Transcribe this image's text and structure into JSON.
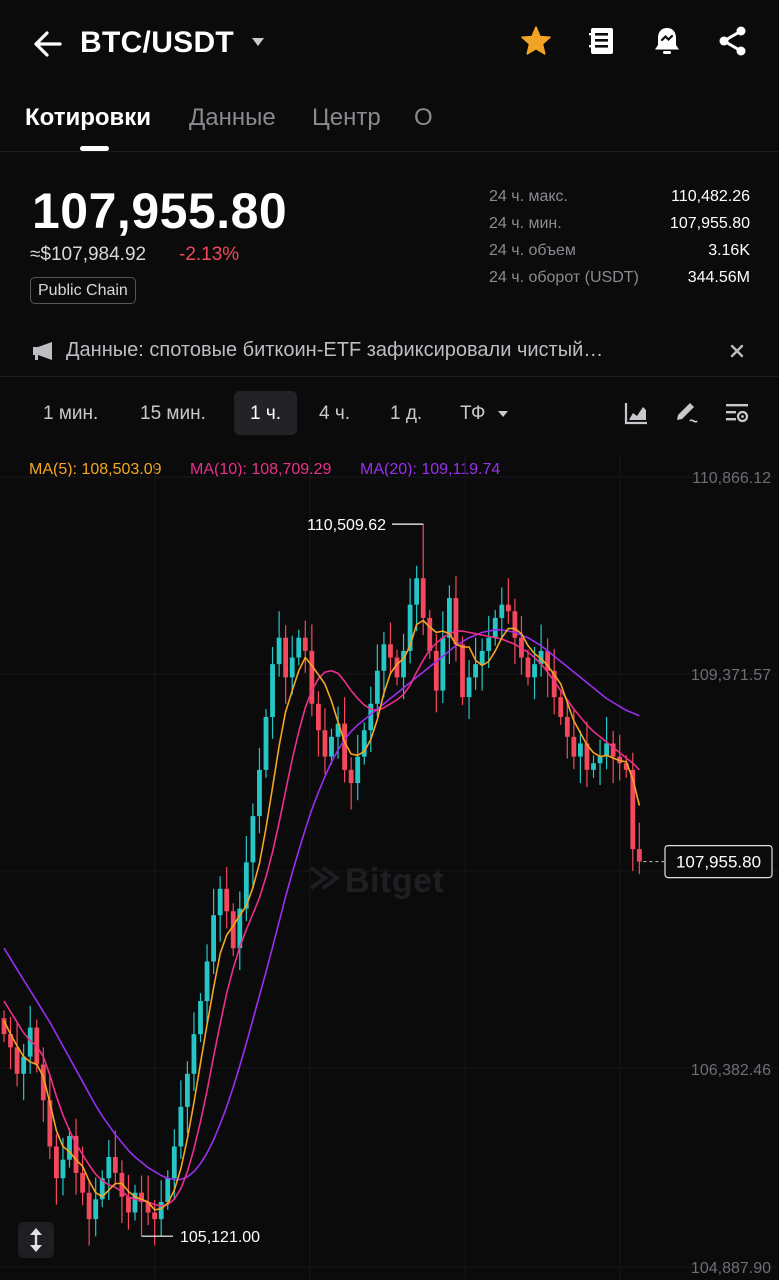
{
  "header": {
    "pair": "BTC/USDT",
    "icons": [
      "back-arrow-icon",
      "chevron-down-icon",
      "star-icon",
      "book-icon",
      "alert-bell-icon",
      "share-icon"
    ],
    "colors": {
      "star": "#f0a326",
      "text": "#ffffff"
    }
  },
  "tabs": [
    {
      "label": "Котировки",
      "active": true
    },
    {
      "label": "Данные",
      "active": false
    },
    {
      "label": "Центр",
      "active": false
    },
    {
      "label": "О",
      "active": false
    }
  ],
  "ticker": {
    "price": "107,955.80",
    "usd_equiv": "≈$107,984.92",
    "change": "-2.13%",
    "tag": "Public Chain",
    "colors": {
      "down": "#f4485d",
      "up": "#26c6c6"
    }
  },
  "stats": [
    {
      "label": "24 ч. макс.",
      "value": "110,482.26"
    },
    {
      "label": "24 ч. мин.",
      "value": "107,955.80"
    },
    {
      "label": "24 ч. объем",
      "value": "3.16K"
    },
    {
      "label": "24 ч. оборот (USDT)",
      "value": "344.56M"
    }
  ],
  "news": {
    "text": "Данные: спотовые биткоин-ETF зафиксировали чистый…",
    "icons": [
      "megaphone-icon",
      "close-icon"
    ]
  },
  "timeframes": {
    "items": [
      "1 мин.",
      "15 мин.",
      "1 ч.",
      "4 ч.",
      "1 д.",
      "ТФ"
    ],
    "selected": "1 ч.",
    "tools": [
      "chart-type-icon",
      "draw-tool-icon",
      "indicator-settings-icon"
    ]
  },
  "indicators": {
    "ma5": "MA(5): 108,503.09",
    "ma10": "MA(10): 108,709.29",
    "ma20": "MA(20): 109,119.74",
    "colors": {
      "ma5": "#f5a623",
      "ma10": "#ec2f8b",
      "ma20": "#9b2ff0"
    }
  },
  "watermark": "Bitget",
  "chart_data": {
    "type": "candlestick",
    "symbol": "BTC/USDT",
    "interval": "1 ч.",
    "y_axis_labels": [
      "110,866.12",
      "109,371.57",
      "106,382.46",
      "104,887.90"
    ],
    "ylim": [
      104887.9,
      110866.12
    ],
    "high_marker": "110,509.62",
    "low_marker": "105,121.00",
    "last_price_label": "107,955.80",
    "high_value": 110509.62,
    "low_value": 105121.0,
    "last_value": 107955.8,
    "colors": {
      "up": "#26c6c6",
      "down": "#f4485d",
      "ma5": "#f5a623",
      "ma10": "#ec2f8b",
      "ma20": "#9b2ff0"
    },
    "close": [
      106650,
      106550,
      106350,
      106480,
      106700,
      106420,
      106150,
      105800,
      105560,
      105700,
      105880,
      105600,
      105450,
      105250,
      105400,
      105560,
      105720,
      105600,
      105420,
      105300,
      105450,
      105380,
      105300,
      105250,
      105380,
      105560,
      105800,
      106100,
      106350,
      106650,
      106900,
      107200,
      107550,
      107750,
      107580,
      107300,
      107600,
      107950,
      108300,
      108650,
      109050,
      109450,
      109650,
      109350,
      109500,
      109650,
      109550,
      109150,
      108950,
      108750,
      108900,
      109000,
      108650,
      108550,
      108750,
      108950,
      109150,
      109400,
      109600,
      109500,
      109350,
      109550,
      109900,
      110100,
      109800,
      109550,
      109250,
      109650,
      109950,
      109600,
      109200,
      109350,
      109450,
      109550,
      109650,
      109800,
      109900,
      109850,
      109650,
      109500,
      109350,
      109450,
      109550,
      109400,
      109200,
      109050,
      108900,
      108750,
      108850,
      108650,
      108700,
      108750,
      108850,
      108750,
      108700,
      108650,
      108050,
      107955.8
    ],
    "ma5": [
      106750,
      106650,
      106560,
      106480,
      106440,
      106420,
      106330,
      106130,
      105920,
      105800,
      105760,
      105700,
      105650,
      105540,
      105450,
      105420,
      105470,
      105520,
      105520,
      105460,
      105420,
      105400,
      105380,
      105320,
      105330,
      105370,
      105470,
      105630,
      105860,
      106130,
      106430,
      106720,
      107000,
      107260,
      107400,
      107470,
      107550,
      107620,
      107760,
      107940,
      108210,
      108520,
      108830,
      109090,
      109250,
      109400,
      109500,
      109440,
      109370,
      109300,
      109170,
      109010,
      108860,
      108770,
      108760,
      108790,
      108880,
      109030,
      109230,
      109380,
      109450,
      109490,
      109590,
      109750,
      109780,
      109730,
      109690,
      109700,
      109680,
      109600,
      109580,
      109580,
      109480,
      109440,
      109470,
      109550,
      109650,
      109720,
      109720,
      109680,
      109590,
      109530,
      109490,
      109440,
      109370,
      109300,
      109160,
      109020,
      108930,
      108840,
      108780,
      108750,
      108760,
      108740,
      108720,
      108710,
      108580,
      108380
    ],
    "ma10": [
      106900,
      106820,
      106740,
      106660,
      106600,
      106560,
      106480,
      106340,
      106180,
      106040,
      105920,
      105820,
      105740,
      105660,
      105590,
      105540,
      105510,
      105490,
      105460,
      105420,
      105400,
      105390,
      105380,
      105360,
      105350,
      105360,
      105400,
      105480,
      105610,
      105780,
      105990,
      106220,
      106480,
      106730,
      106960,
      107150,
      107310,
      107440,
      107560,
      107680,
      107840,
      108030,
      108250,
      108490,
      108730,
      108940,
      109120,
      109250,
      109340,
      109390,
      109400,
      109380,
      109320,
      109250,
      109190,
      109140,
      109110,
      109100,
      109120,
      109150,
      109180,
      109220,
      109290,
      109390,
      109480,
      109560,
      109610,
      109650,
      109680,
      109700,
      109700,
      109690,
      109680,
      109670,
      109660,
      109650,
      109640,
      109620,
      109600,
      109570,
      109540,
      109500,
      109450,
      109390,
      109320,
      109250,
      109180,
      109110,
      109050,
      108990,
      108940,
      108900,
      108860,
      108820,
      108780,
      108740,
      108700,
      108650
    ],
    "ma20": [
      107300,
      107220,
      107140,
      107060,
      106980,
      106900,
      106820,
      106740,
      106650,
      106560,
      106470,
      106380,
      106290,
      106200,
      106110,
      106030,
      105960,
      105890,
      105830,
      105770,
      105720,
      105680,
      105640,
      105610,
      105580,
      105560,
      105550,
      105550,
      105570,
      105610,
      105670,
      105750,
      105850,
      105970,
      106100,
      106250,
      106410,
      106580,
      106760,
      106940,
      107120,
      107310,
      107500,
      107690,
      107870,
      108040,
      108200,
      108350,
      108480,
      108600,
      108710,
      108800,
      108880,
      108940,
      108990,
      109030,
      109070,
      109110,
      109150,
      109190,
      109230,
      109270,
      109310,
      109350,
      109390,
      109430,
      109470,
      109510,
      109550,
      109590,
      109620,
      109650,
      109670,
      109690,
      109700,
      109710,
      109710,
      109700,
      109690,
      109670,
      109650,
      109620,
      109590,
      109550,
      109510,
      109470,
      109430,
      109390,
      109350,
      109310,
      109270,
      109230,
      109190,
      109160,
      109130,
      109100,
      109080,
      109060
    ]
  }
}
